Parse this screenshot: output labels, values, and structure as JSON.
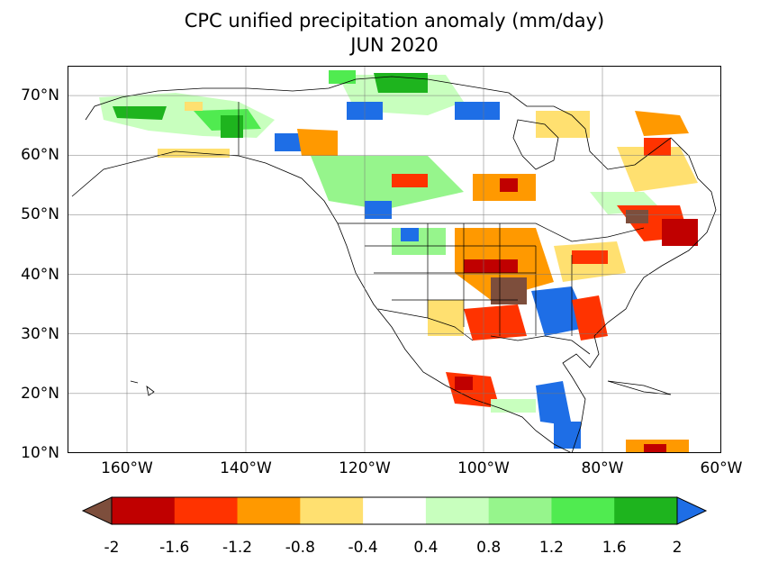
{
  "title": {
    "line1": "CPC unified precipitation anomaly (mm/day)",
    "line2": "JUN 2020"
  },
  "map": {
    "projection": "plate-carree",
    "lon_range": [
      -170,
      -60
    ],
    "lat_range": [
      10,
      75
    ],
    "gridlines": true,
    "lat_ticks": [
      {
        "value": 70,
        "label": "70°N"
      },
      {
        "value": 60,
        "label": "60°N"
      },
      {
        "value": 50,
        "label": "50°N"
      },
      {
        "value": 40,
        "label": "40°N"
      },
      {
        "value": 30,
        "label": "30°N"
      },
      {
        "value": 20,
        "label": "20°N"
      },
      {
        "value": 10,
        "label": "10°N"
      }
    ],
    "lon_ticks": [
      {
        "value": -160,
        "label": "160°W"
      },
      {
        "value": -140,
        "label": "140°W"
      },
      {
        "value": -120,
        "label": "120°W"
      },
      {
        "value": -100,
        "label": "100°W"
      },
      {
        "value": -80,
        "label": "80°W"
      },
      {
        "value": -60,
        "label": "60°W"
      }
    ]
  },
  "colorbar": {
    "orientation": "horizontal",
    "extend": "both",
    "tick_labels": [
      "-2",
      "-1.6",
      "-1.2",
      "-0.8",
      "-0.4",
      "0.4",
      "0.8",
      "1.2",
      "1.6",
      "2"
    ],
    "bins": [
      {
        "range": [
          -2,
          -1.6
        ],
        "color": "#c00000"
      },
      {
        "range": [
          -1.6,
          -1.2
        ],
        "color": "#ff3300"
      },
      {
        "range": [
          -1.2,
          -0.8
        ],
        "color": "#ff9900"
      },
      {
        "range": [
          -0.8,
          -0.4
        ],
        "color": "#ffe070"
      },
      {
        "range": [
          -0.4,
          0.4
        ],
        "color": "#ffffff"
      },
      {
        "range": [
          0.4,
          0.8
        ],
        "color": "#c8ffbe"
      },
      {
        "range": [
          0.8,
          1.2
        ],
        "color": "#96f58c"
      },
      {
        "range": [
          1.2,
          1.6
        ],
        "color": "#50eb50"
      },
      {
        "range": [
          1.6,
          2
        ],
        "color": "#1eb41e"
      }
    ],
    "under_color": "#7d4e3c",
    "over_color": "#1e6ee6"
  }
}
